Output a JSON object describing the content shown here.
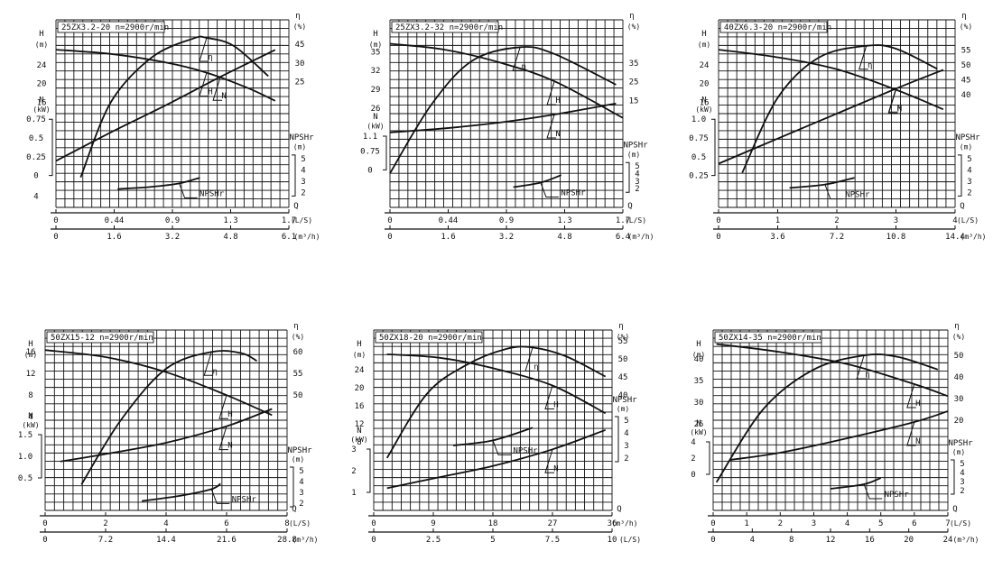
{
  "figure": {
    "description_free": true
  },
  "chart_data": [
    {
      "type": "line",
      "title": "25ZX3.2-20 n=2900r/min",
      "h_axis_label": "H",
      "h_axis_unit": "(m)",
      "n_axis_label": "N",
      "n_axis_unit": "(kW)",
      "eta_axis_label": "η",
      "eta_axis_unit": "(%)",
      "npsh_axis_label": "NPSHr",
      "npsh_axis_unit": "(m)",
      "q_axis_label": "Q",
      "q_axis_unit": "(L/S)",
      "q2_axis_unit": "(m³/h)",
      "xlim": [
        0,
        1.7
      ],
      "x_ticks_ls": [
        "0",
        "0.44",
        "0.9",
        "1.3",
        "1.7"
      ],
      "x_ticks_m3h": [
        "0",
        "1.6",
        "3.2",
        "4.8",
        "6.1"
      ],
      "h_ticks": [
        "24",
        "20",
        "16"
      ],
      "n_ticks": [
        "0.75",
        "0.5",
        "0.25",
        "0"
      ],
      "eta_ticks": [
        "45",
        "30",
        "25"
      ],
      "npsh_ticks": [
        "5",
        "4",
        "3",
        "2"
      ],
      "stray_mark": "4",
      "series": [
        {
          "name": "H",
          "x": [
            0.0,
            0.4,
            0.8,
            1.1,
            1.4,
            1.6
          ],
          "y": [
            22.5,
            22.0,
            21.0,
            19.8,
            18.0,
            16.5
          ]
        },
        {
          "name": "η",
          "x": [
            0.18,
            0.4,
            0.7,
            1.0,
            1.1,
            1.3,
            1.55
          ],
          "y": [
            8,
            28,
            40,
            45,
            45.2,
            43,
            35
          ]
        },
        {
          "name": "N",
          "x": [
            0.0,
            0.4,
            0.8,
            1.2,
            1.6
          ],
          "y": [
            0.06,
            0.25,
            0.43,
            0.62,
            0.8
          ]
        },
        {
          "name": "NPSHr",
          "x": [
            0.45,
            0.7,
            0.9,
            1.05
          ],
          "y": [
            2.3,
            2.5,
            2.8,
            3.3
          ]
        }
      ]
    },
    {
      "type": "line",
      "title": "25ZX3.2-32 n=2900r/min",
      "h_axis_label": "H",
      "h_axis_unit": "(m)",
      "n_axis_label": "N",
      "n_axis_unit": "(kW)",
      "eta_axis_label": "η",
      "eta_axis_unit": "(%)",
      "npsh_axis_label": "NPSHr",
      "npsh_axis_unit": "(m)",
      "q_axis_label": "Q",
      "q_axis_unit": "(L/S)",
      "q2_axis_unit": "(m³/h)",
      "xlim": [
        0,
        1.7
      ],
      "x_ticks_ls": [
        "0",
        "0.44",
        "0.9",
        "1.3",
        "1.7"
      ],
      "x_ticks_m3h": [
        "0",
        "1.6",
        "3.2",
        "4.8",
        "6.4"
      ],
      "h_ticks": [
        "35",
        "32",
        "29",
        "26"
      ],
      "n_ticks": [
        "1.1",
        "0.75",
        "0"
      ],
      "eta_ticks": [
        "35",
        "25",
        "15"
      ],
      "npsh_ticks": [
        "5",
        "4",
        "3",
        "2"
      ],
      "series": [
        {
          "name": "H",
          "x": [
            0.0,
            0.4,
            0.8,
            1.2,
            1.7
          ],
          "y": [
            34.2,
            33.5,
            32.0,
            29.8,
            25.5
          ]
        },
        {
          "name": "η",
          "x": [
            0.0,
            0.3,
            0.6,
            0.95,
            1.2,
            1.65
          ],
          "y": [
            0,
            20,
            33,
            37,
            35,
            26
          ]
        },
        {
          "name": "N",
          "x": [
            0.0,
            0.4,
            0.8,
            1.2,
            1.65
          ],
          "y": [
            0.55,
            0.62,
            0.72,
            0.86,
            1.05
          ]
        },
        {
          "name": "NPSHr",
          "x": [
            0.9,
            1.1,
            1.25
          ],
          "y": [
            2.2,
            2.8,
            3.8
          ]
        }
      ]
    },
    {
      "type": "line",
      "title": "40ZX6.3-20 n=2900r/min",
      "h_axis_label": "H",
      "h_axis_unit": "(m)",
      "n_axis_label": "N",
      "n_axis_unit": "(kW)",
      "eta_axis_label": "η",
      "eta_axis_unit": "(%)",
      "npsh_axis_label": "NPSHr",
      "npsh_axis_unit": "(m)",
      "q_axis_label": "Q",
      "q_axis_unit": "(L/S)",
      "q2_axis_unit": "(m³/h)",
      "xlim": [
        0,
        4
      ],
      "x_ticks_ls": [
        "0",
        "1",
        "2",
        "3",
        "4"
      ],
      "x_ticks_m3h": [
        "0",
        "3.6",
        "7.2",
        "10.8",
        "14.4"
      ],
      "h_ticks": [
        "24",
        "20",
        "16"
      ],
      "n_ticks": [
        "1.0",
        "0.75",
        "0.5",
        "0.25"
      ],
      "eta_ticks": [
        "55",
        "50",
        "45",
        "40"
      ],
      "npsh_ticks": [
        "5",
        "4",
        "3",
        "2"
      ],
      "series": [
        {
          "name": "H",
          "x": [
            0.0,
            1.0,
            2.0,
            3.0,
            3.8
          ],
          "y": [
            22.5,
            21.6,
            20.2,
            17.8,
            15.5
          ]
        },
        {
          "name": "η",
          "x": [
            0.4,
            1.0,
            1.7,
            2.5,
            3.0,
            3.7
          ],
          "y": [
            12,
            38,
            52,
            56,
            55,
            48
          ]
        },
        {
          "name": "N",
          "x": [
            0.0,
            1.0,
            2.0,
            3.0,
            3.8
          ],
          "y": [
            0.35,
            0.55,
            0.75,
            0.95,
            1.1
          ]
        },
        {
          "name": "NPSHr",
          "x": [
            1.2,
            1.8,
            2.3
          ],
          "y": [
            2.4,
            2.7,
            3.3
          ]
        }
      ]
    },
    {
      "type": "line",
      "title": "50ZX15-12 n=2900r/min",
      "h_axis_label": "H",
      "h_axis_unit": "(m)",
      "n_axis_label": "N",
      "n_axis_unit": "(kW)",
      "eta_axis_label": "η",
      "eta_axis_unit": "(%)",
      "npsh_axis_label": "NPSHr",
      "npsh_axis_unit": "(m)",
      "q_axis_label": "Q",
      "q_axis_unit": "(L/S)",
      "q2_axis_unit": "(m³/h)",
      "xlim": [
        0,
        8
      ],
      "x_ticks_ls": [
        "0",
        "2",
        "4",
        "6",
        "8"
      ],
      "x_ticks_m3h": [
        "0",
        "7.2",
        "14.4",
        "21.6",
        "28.8"
      ],
      "h_ticks": [
        "16",
        "12",
        "8",
        "4"
      ],
      "n_ticks": [
        "1.5",
        "1.0",
        "0.5"
      ],
      "eta_ticks": [
        "60",
        "55",
        "50"
      ],
      "npsh_ticks": [
        "5",
        "4",
        "3",
        "2"
      ],
      "series": [
        {
          "name": "H",
          "x": [
            0.0,
            2.0,
            4.0,
            6.0,
            7.5
          ],
          "y": [
            16.0,
            15.3,
            13.8,
            11.5,
            9.5
          ]
        },
        {
          "name": "η",
          "x": [
            1.2,
            2.5,
            4.0,
            5.5,
            6.5,
            7.0
          ],
          "y": [
            10,
            35,
            55,
            61.5,
            61,
            58
          ]
        },
        {
          "name": "N",
          "x": [
            0.5,
            2.0,
            4.0,
            6.0,
            7.5
          ],
          "y": [
            0.65,
            0.75,
            0.9,
            1.12,
            1.35
          ]
        },
        {
          "name": "NPSHr",
          "x": [
            3.2,
            4.5,
            5.5,
            5.8
          ],
          "y": [
            2.2,
            2.7,
            3.3,
            3.8
          ]
        }
      ]
    },
    {
      "type": "line",
      "title": "50ZX18-20 n=2900r/min",
      "h_axis_label": "H",
      "h_axis_unit": "(m)",
      "n_axis_label": "N",
      "n_axis_unit": "(kW)",
      "eta_axis_label": "η",
      "eta_axis_unit": "(%)",
      "npsh_axis_label": "NPSHr",
      "npsh_axis_unit": "(m)",
      "q_axis_label": "Q",
      "q_axis_unit": "(m³/h)",
      "q2_axis_unit": "(L/S)",
      "xlim": [
        0,
        36
      ],
      "x_ticks_ls": [
        "0",
        "9",
        "18",
        "27",
        "36"
      ],
      "x_ticks_m3h": [
        "0",
        "2.5",
        "5",
        "7.5",
        "10"
      ],
      "h_ticks": [
        "24",
        "20",
        "16",
        "12",
        "8"
      ],
      "n_ticks": [
        "3",
        "2",
        "1"
      ],
      "eta_ticks": [
        "55",
        "50",
        "45",
        "40"
      ],
      "npsh_ticks": [
        "5",
        "4",
        "3",
        "2"
      ],
      "series": [
        {
          "name": "H",
          "x": [
            2.0,
            10.0,
            18.0,
            27.0,
            35.0
          ],
          "y": [
            22.5,
            22.0,
            20.5,
            18.0,
            14.0
          ]
        },
        {
          "name": "η",
          "x": [
            2.0,
            8.0,
            14.0,
            20.0,
            24.0,
            29.0,
            35.0
          ],
          "y": [
            18,
            40,
            50,
            55.5,
            56,
            53,
            46
          ]
        },
        {
          "name": "N",
          "x": [
            2.0,
            10.0,
            18.0,
            27.0,
            35.0
          ],
          "y": [
            0.8,
            1.2,
            1.6,
            2.2,
            2.9
          ]
        },
        {
          "name": "NPSHr",
          "x": [
            12.0,
            18.0,
            24.0
          ],
          "y": [
            3.0,
            3.4,
            4.4
          ]
        }
      ]
    },
    {
      "type": "line",
      "title": "50ZX14-35 n=2900r/min",
      "h_axis_label": "H",
      "h_axis_unit": "(m)",
      "n_axis_label": "N",
      "n_axis_unit": "(kW)",
      "eta_axis_label": "η",
      "eta_axis_unit": "(%)",
      "npsh_axis_label": "NPSHr",
      "npsh_axis_unit": "(m)",
      "q_axis_label": "Q",
      "q_axis_unit": "(L/S)",
      "q2_axis_unit": "(m³/h)",
      "xlim": [
        0,
        7
      ],
      "x_ticks_ls": [
        "0",
        "1",
        "2",
        "3",
        "4",
        "5",
        "6",
        "7"
      ],
      "x_ticks_m3h": [
        "0",
        "4",
        "8",
        "12",
        "16",
        "20",
        "24"
      ],
      "h_ticks": [
        "40",
        "35",
        "30",
        "25"
      ],
      "n_ticks": [
        "4",
        "2",
        "0"
      ],
      "eta_ticks": [
        "50",
        "40",
        "30",
        "20"
      ],
      "npsh_ticks": [
        "5",
        "4",
        "3",
        "2"
      ],
      "series": [
        {
          "name": "H",
          "x": [
            0.1,
            2.0,
            4.0,
            6.0,
            7.0
          ],
          "y": [
            41.5,
            39.5,
            36.5,
            31.5,
            28.5
          ]
        },
        {
          "name": "η",
          "x": [
            0.1,
            1.5,
            3.0,
            4.5,
            5.5,
            6.7
          ],
          "y": [
            10,
            36,
            50,
            55,
            54.5,
            50
          ]
        },
        {
          "name": "N",
          "x": [
            0.5,
            2.0,
            4.0,
            6.0,
            7.0
          ],
          "y": [
            0.8,
            1.2,
            2.0,
            2.9,
            3.5
          ]
        },
        {
          "name": "NPSHr",
          "x": [
            3.5,
            4.5,
            5.0
          ],
          "y": [
            2.2,
            2.7,
            3.4
          ]
        }
      ]
    }
  ]
}
